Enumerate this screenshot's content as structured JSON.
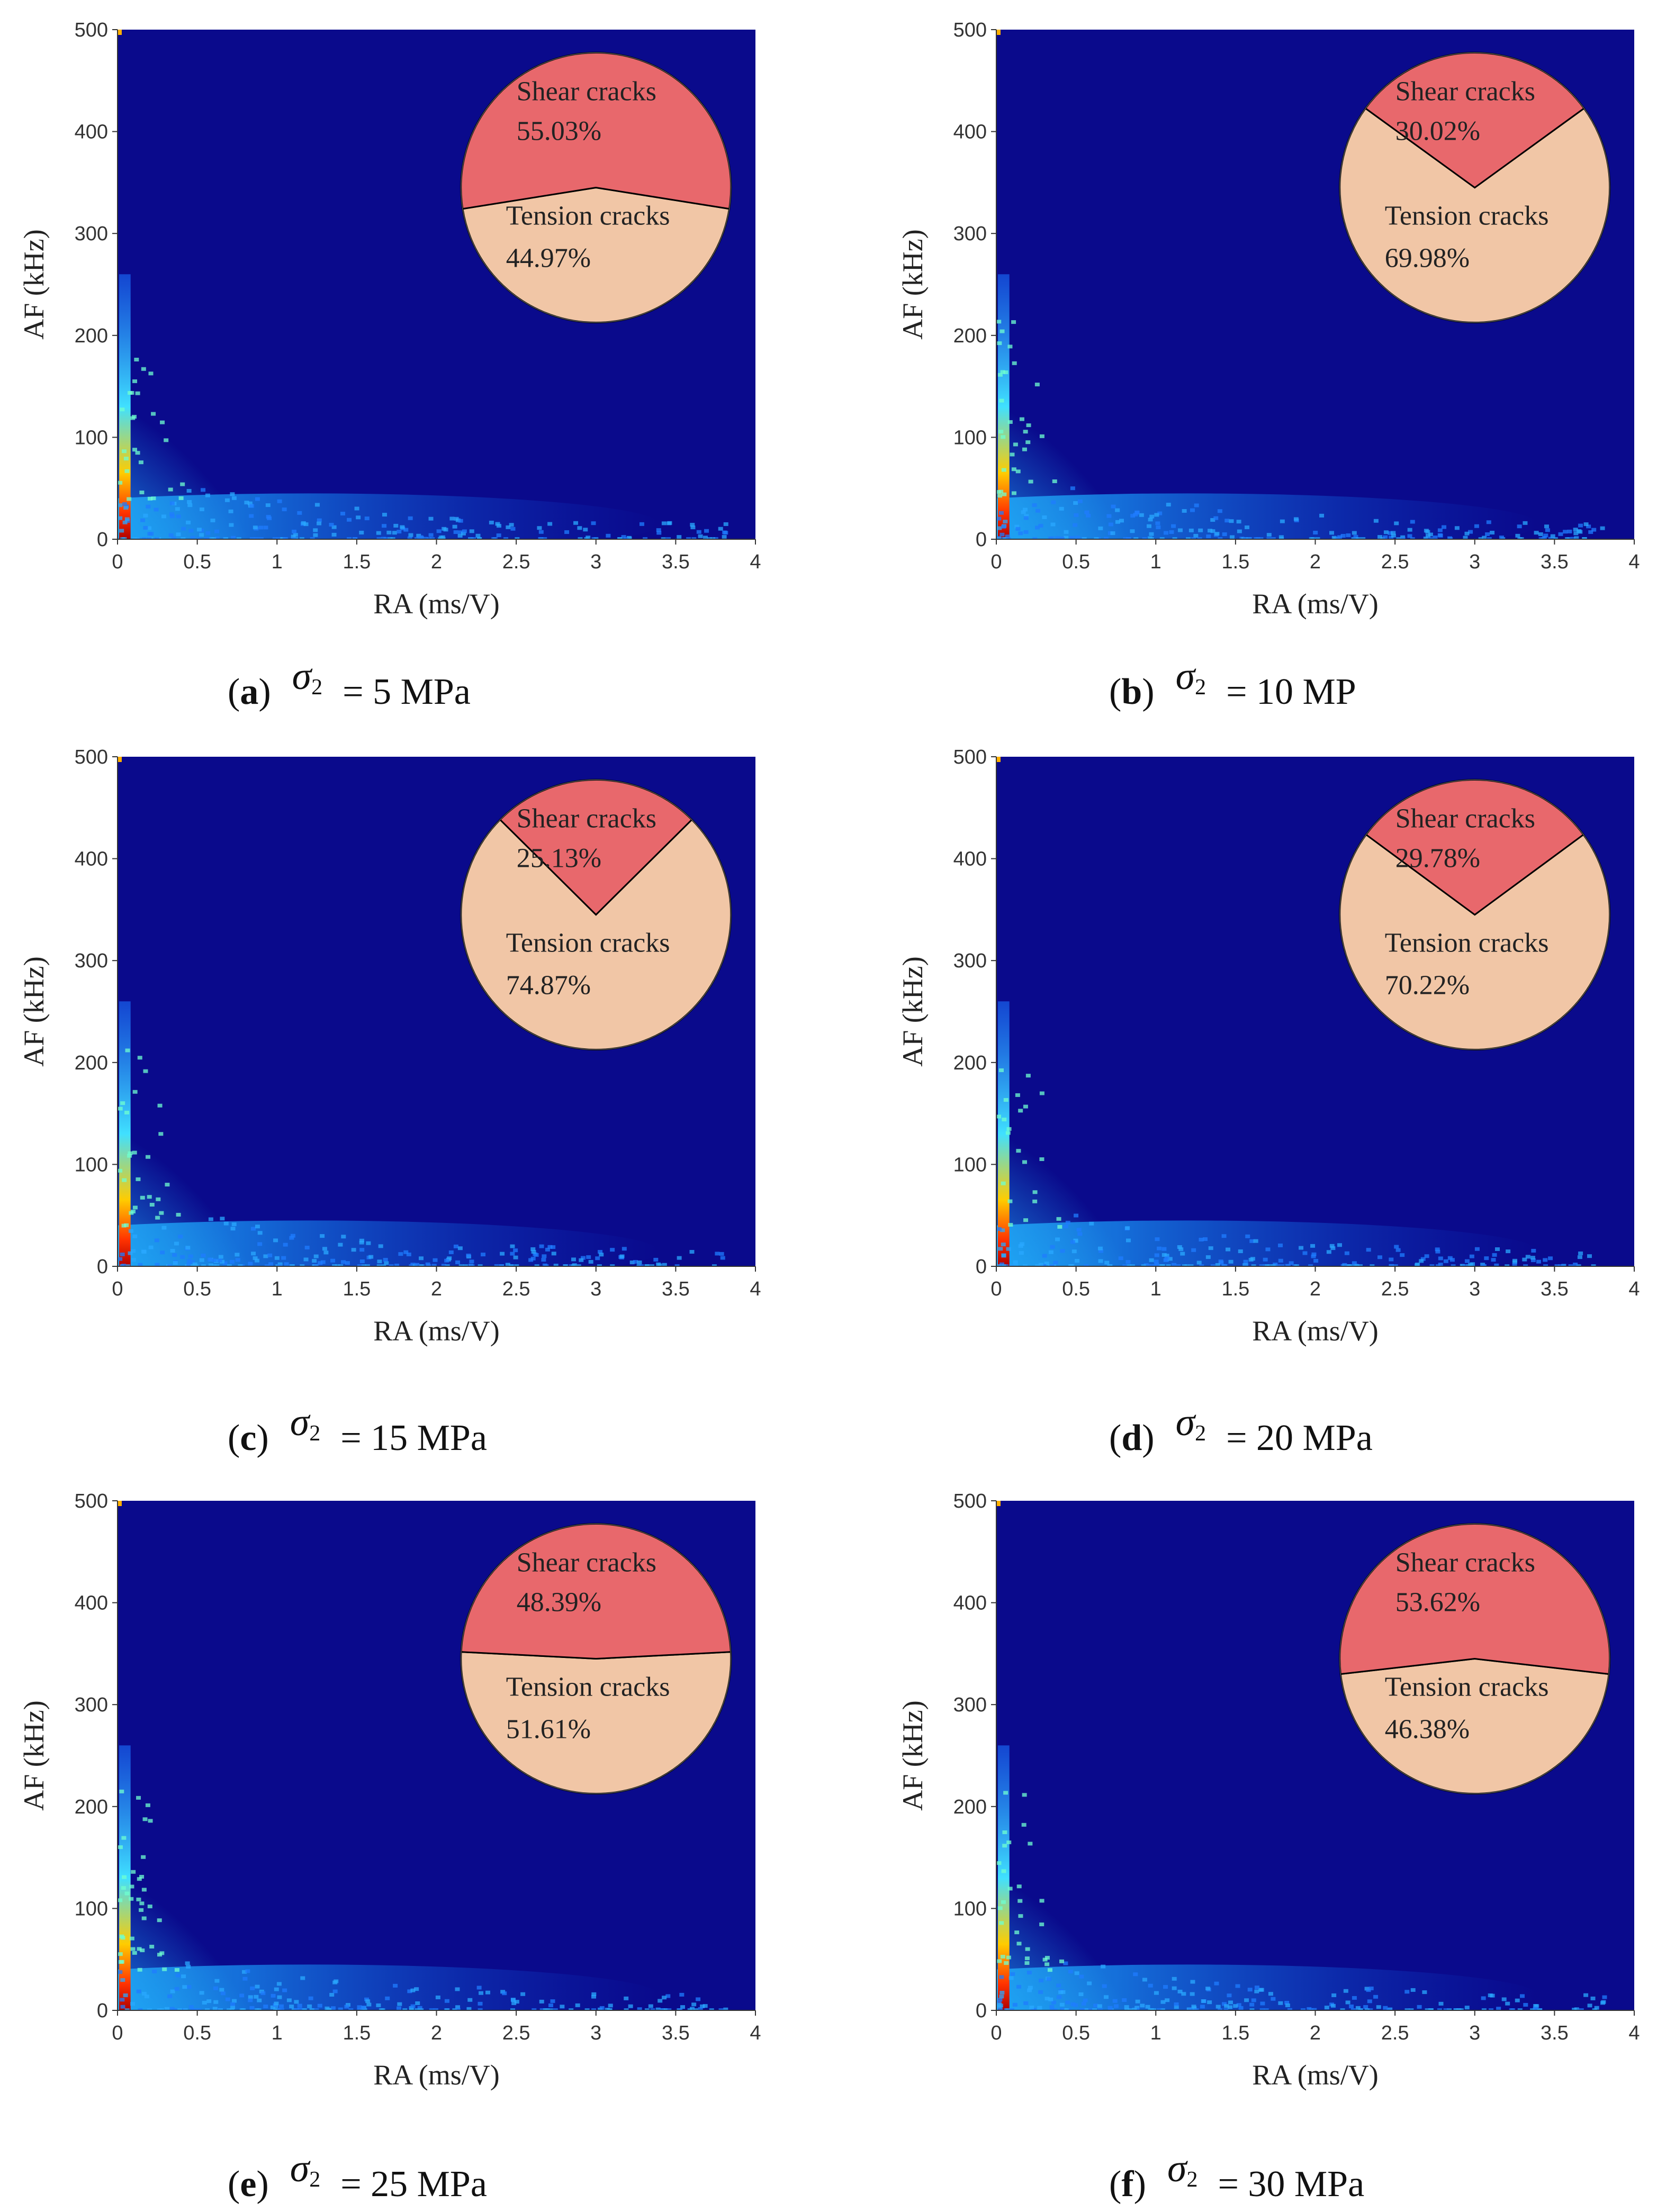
{
  "figure_title": "",
  "colors": {
    "background": "#0a0a8c",
    "shear": "#e8686c",
    "tension": "#f1c6a6",
    "divider": "#000000",
    "axis": "#333333"
  },
  "chart_data": [
    {
      "id": "a",
      "type": "heatmap",
      "xlabel": "RA (ms/V)",
      "ylabel": "AF (kHz)",
      "xlim": [
        0,
        4
      ],
      "ylim": [
        0,
        500
      ],
      "xticks": [
        "0",
        "0.5",
        "1",
        "1.5",
        "2",
        "2.5",
        "3",
        "3.5",
        "4"
      ],
      "yticks": [
        "0",
        "100",
        "200",
        "300",
        "400",
        "500"
      ],
      "pie": {
        "type": "pie",
        "slices": [
          {
            "label": "Shear cracks",
            "value": 55.03,
            "value_label": "55.03%"
          },
          {
            "label": "Tension cracks",
            "value": 44.97,
            "value_label": "44.97%"
          }
        ]
      },
      "caption": {
        "letter": "a",
        "symbol": "σ",
        "subscript": "2",
        "text": "= 5 MPa"
      }
    },
    {
      "id": "b",
      "type": "heatmap",
      "xlabel": "RA (ms/V)",
      "ylabel": "AF (kHz)",
      "xlim": [
        0,
        4
      ],
      "ylim": [
        0,
        500
      ],
      "xticks": [
        "0",
        "0.5",
        "1",
        "1.5",
        "2",
        "2.5",
        "3",
        "3.5",
        "4"
      ],
      "yticks": [
        "0",
        "100",
        "200",
        "300",
        "400",
        "500"
      ],
      "pie": {
        "type": "pie",
        "slices": [
          {
            "label": "Shear cracks",
            "value": 30.02,
            "value_label": "30.02%"
          },
          {
            "label": "Tension cracks",
            "value": 69.98,
            "value_label": "69.98%"
          }
        ]
      },
      "caption": {
        "letter": "b",
        "symbol": "σ",
        "subscript": "2",
        "text": "= 10 MP"
      }
    },
    {
      "id": "c",
      "type": "heatmap",
      "xlabel": "RA (ms/V)",
      "ylabel": "AF (kHz)",
      "xlim": [
        0,
        4
      ],
      "ylim": [
        0,
        500
      ],
      "xticks": [
        "0",
        "0.5",
        "1",
        "1.5",
        "2",
        "2.5",
        "3",
        "3.5",
        "4"
      ],
      "yticks": [
        "0",
        "100",
        "200",
        "300",
        "400",
        "500"
      ],
      "pie": {
        "type": "pie",
        "slices": [
          {
            "label": "Shear cracks",
            "value": 25.13,
            "value_label": "25.13%"
          },
          {
            "label": "Tension cracks",
            "value": 74.87,
            "value_label": "74.87%"
          }
        ]
      },
      "caption": {
        "letter": "c",
        "symbol": "σ",
        "subscript": "2",
        "text": "= 15 MPa"
      }
    },
    {
      "id": "d",
      "type": "heatmap",
      "xlabel": "RA (ms/V)",
      "ylabel": "AF (kHz)",
      "xlim": [
        0,
        4
      ],
      "ylim": [
        0,
        500
      ],
      "xticks": [
        "0",
        "0.5",
        "1",
        "1.5",
        "2",
        "2.5",
        "3",
        "3.5",
        "4"
      ],
      "yticks": [
        "0",
        "100",
        "200",
        "300",
        "400",
        "500"
      ],
      "pie": {
        "type": "pie",
        "slices": [
          {
            "label": "Shear cracks",
            "value": 29.78,
            "value_label": "29.78%"
          },
          {
            "label": "Tension cracks",
            "value": 70.22,
            "value_label": "70.22%"
          }
        ]
      },
      "caption": {
        "letter": "d",
        "symbol": "σ",
        "subscript": "2",
        "text": "= 20 MPa"
      }
    },
    {
      "id": "e",
      "type": "heatmap",
      "xlabel": "RA (ms/V)",
      "ylabel": "AF (kHz)",
      "xlim": [
        0,
        4
      ],
      "ylim": [
        0,
        500
      ],
      "xticks": [
        "0",
        "0.5",
        "1",
        "1.5",
        "2",
        "2.5",
        "3",
        "3.5",
        "4"
      ],
      "yticks": [
        "0",
        "100",
        "200",
        "300",
        "400",
        "500"
      ],
      "pie": {
        "type": "pie",
        "slices": [
          {
            "label": "Shear cracks",
            "value": 48.39,
            "value_label": "48.39%"
          },
          {
            "label": "Tension cracks",
            "value": 51.61,
            "value_label": "51.61%"
          }
        ]
      },
      "caption": {
        "letter": "e",
        "symbol": "σ",
        "subscript": "2",
        "text": "= 25 MPa"
      }
    },
    {
      "id": "f",
      "type": "heatmap",
      "xlabel": "RA (ms/V)",
      "ylabel": "AF (kHz)",
      "xlim": [
        0,
        4
      ],
      "ylim": [
        0,
        500
      ],
      "xticks": [
        "0",
        "0.5",
        "1",
        "1.5",
        "2",
        "2.5",
        "3",
        "3.5",
        "4"
      ],
      "yticks": [
        "0",
        "100",
        "200",
        "300",
        "400",
        "500"
      ],
      "pie": {
        "type": "pie",
        "slices": [
          {
            "label": "Shear cracks",
            "value": 53.62,
            "value_label": "53.62%"
          },
          {
            "label": "Tension cracks",
            "value": 46.38,
            "value_label": "46.38%"
          }
        ]
      },
      "caption": {
        "letter": "f",
        "symbol": "σ",
        "subscript": "2",
        "text": "= 30 MPa"
      }
    }
  ]
}
